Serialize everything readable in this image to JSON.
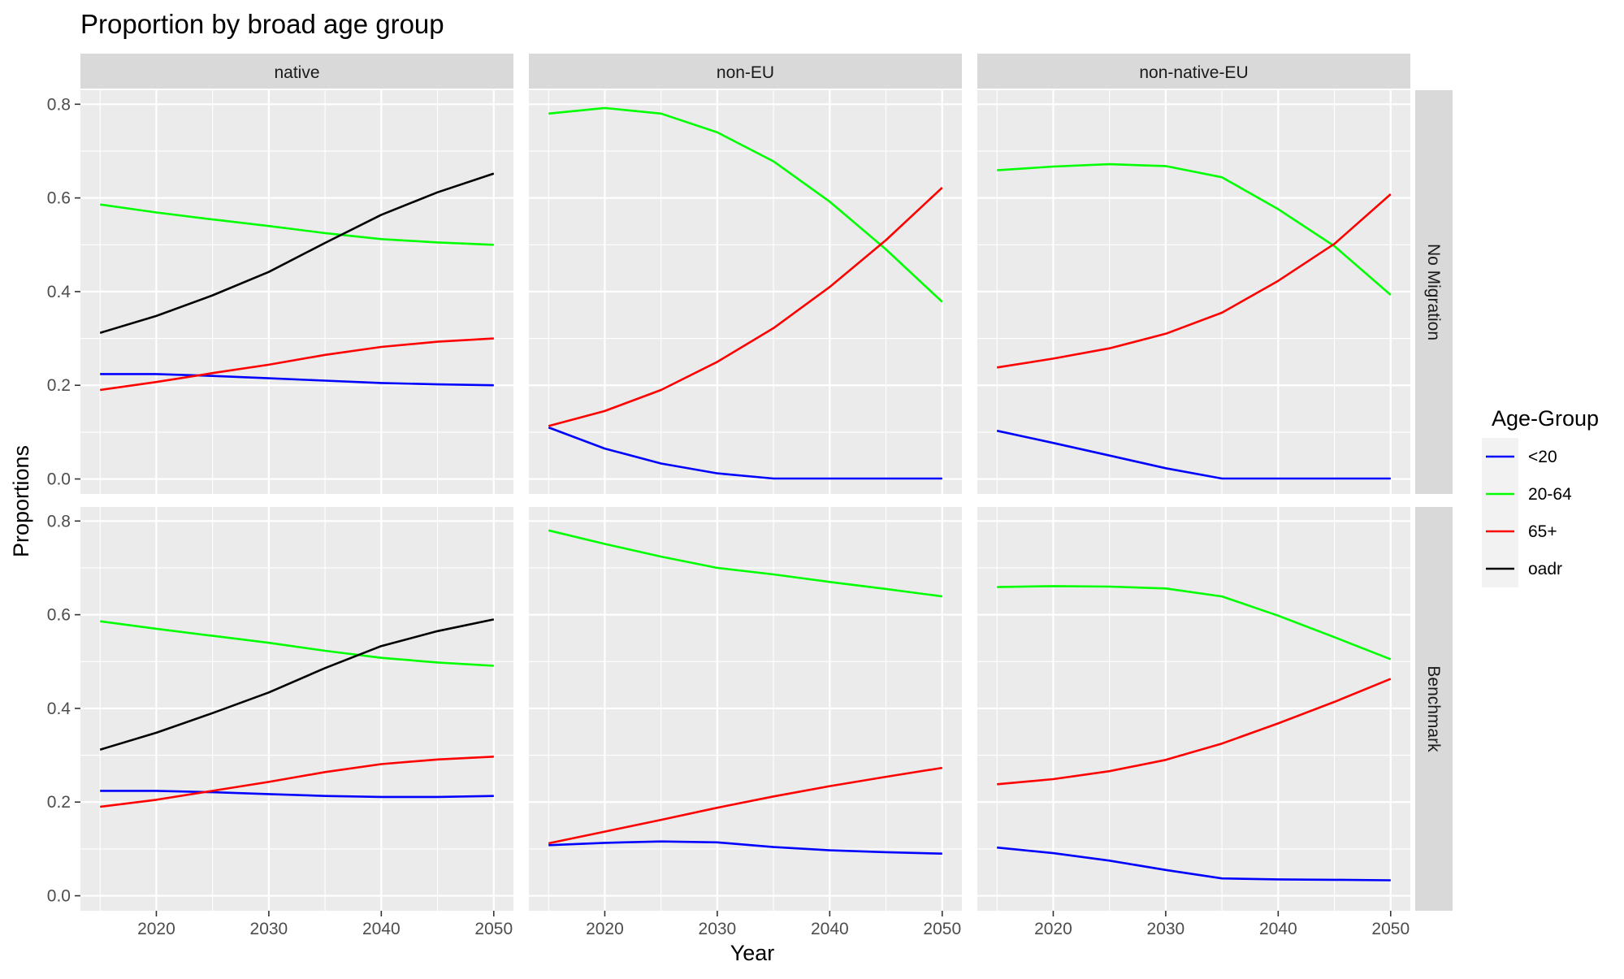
{
  "chart_data": {
    "type": "line",
    "title": "Proportion by broad age group",
    "xlabel": "Year",
    "ylabel": "Proportions",
    "x": [
      2015,
      2020,
      2025,
      2030,
      2035,
      2040,
      2045,
      2050
    ],
    "x_ticks": [
      "2020",
      "2030",
      "2040",
      "2050"
    ],
    "y_ticks": [
      "0.0",
      "0.2",
      "0.4",
      "0.6",
      "0.8"
    ],
    "xlim": [
      2013.25,
      2051.75
    ],
    "ylim": [
      -0.032,
      0.83
    ],
    "grid": true,
    "legend": {
      "title": "Age-Group",
      "position": "right",
      "entries": [
        {
          "label": "<20",
          "color": "#0000ff"
        },
        {
          "label": "20-64",
          "color": "#00ff00"
        },
        {
          "label": "65+",
          "color": "#ff0000"
        },
        {
          "label": "oadr",
          "color": "#000000"
        }
      ]
    },
    "columns": [
      "native",
      "non-EU",
      "non-native-EU"
    ],
    "rows": [
      "No Migration",
      "Benchmark"
    ],
    "panels": [
      {
        "column": "native",
        "row": "No Migration",
        "series": [
          {
            "name": "<20",
            "values": [
              0.224,
              0.224,
              0.22,
              0.215,
              0.21,
              0.205,
              0.202,
              0.2
            ]
          },
          {
            "name": "20-64",
            "values": [
              0.586,
              0.569,
              0.554,
              0.54,
              0.525,
              0.512,
              0.505,
              0.5
            ]
          },
          {
            "name": "65+",
            "values": [
              0.19,
              0.207,
              0.226,
              0.244,
              0.265,
              0.282,
              0.293,
              0.3
            ]
          },
          {
            "name": "oadr",
            "values": [
              0.312,
              0.348,
              0.392,
              0.442,
              0.504,
              0.564,
              0.612,
              0.652
            ]
          }
        ]
      },
      {
        "column": "non-EU",
        "row": "No Migration",
        "series": [
          {
            "name": "<20",
            "values": [
              0.11,
              0.065,
              0.033,
              0.012,
              0.001,
              0.001,
              0.001,
              0.001
            ]
          },
          {
            "name": "20-64",
            "values": [
              0.78,
              0.792,
              0.78,
              0.74,
              0.678,
              0.592,
              0.49,
              0.378
            ]
          },
          {
            "name": "65+",
            "values": [
              0.113,
              0.145,
              0.19,
              0.25,
              0.322,
              0.41,
              0.51,
              0.622
            ]
          }
        ]
      },
      {
        "column": "non-native-EU",
        "row": "No Migration",
        "series": [
          {
            "name": "<20",
            "values": [
              0.103,
              0.077,
              0.05,
              0.023,
              0.001,
              0.001,
              0.001,
              0.001
            ]
          },
          {
            "name": "20-64",
            "values": [
              0.659,
              0.667,
              0.672,
              0.668,
              0.644,
              0.576,
              0.497,
              0.393
            ]
          },
          {
            "name": "65+",
            "values": [
              0.238,
              0.257,
              0.279,
              0.31,
              0.355,
              0.423,
              0.502,
              0.608
            ]
          }
        ]
      },
      {
        "column": "native",
        "row": "Benchmark",
        "series": [
          {
            "name": "<20",
            "values": [
              0.224,
              0.224,
              0.221,
              0.217,
              0.213,
              0.211,
              0.211,
              0.213
            ]
          },
          {
            "name": "20-64",
            "values": [
              0.586,
              0.57,
              0.555,
              0.54,
              0.523,
              0.508,
              0.498,
              0.491
            ]
          },
          {
            "name": "65+",
            "values": [
              0.19,
              0.205,
              0.224,
              0.243,
              0.264,
              0.281,
              0.291,
              0.297
            ]
          },
          {
            "name": "oadr",
            "values": [
              0.312,
              0.348,
              0.39,
              0.434,
              0.486,
              0.533,
              0.565,
              0.59
            ]
          }
        ]
      },
      {
        "column": "non-EU",
        "row": "Benchmark",
        "series": [
          {
            "name": "<20",
            "values": [
              0.108,
              0.113,
              0.116,
              0.114,
              0.104,
              0.097,
              0.093,
              0.09
            ]
          },
          {
            "name": "20-64",
            "values": [
              0.78,
              0.751,
              0.724,
              0.7,
              0.686,
              0.67,
              0.655,
              0.639
            ]
          },
          {
            "name": "65+",
            "values": [
              0.112,
              0.137,
              0.162,
              0.188,
              0.212,
              0.234,
              0.254,
              0.273
            ]
          }
        ]
      },
      {
        "column": "non-native-EU",
        "row": "Benchmark",
        "series": [
          {
            "name": "<20",
            "values": [
              0.103,
              0.091,
              0.075,
              0.055,
              0.037,
              0.035,
              0.034,
              0.033
            ]
          },
          {
            "name": "20-64",
            "values": [
              0.659,
              0.661,
              0.66,
              0.656,
              0.639,
              0.598,
              0.552,
              0.505
            ]
          },
          {
            "name": "65+",
            "values": [
              0.238,
              0.249,
              0.266,
              0.29,
              0.325,
              0.368,
              0.414,
              0.463
            ]
          }
        ]
      }
    ]
  }
}
